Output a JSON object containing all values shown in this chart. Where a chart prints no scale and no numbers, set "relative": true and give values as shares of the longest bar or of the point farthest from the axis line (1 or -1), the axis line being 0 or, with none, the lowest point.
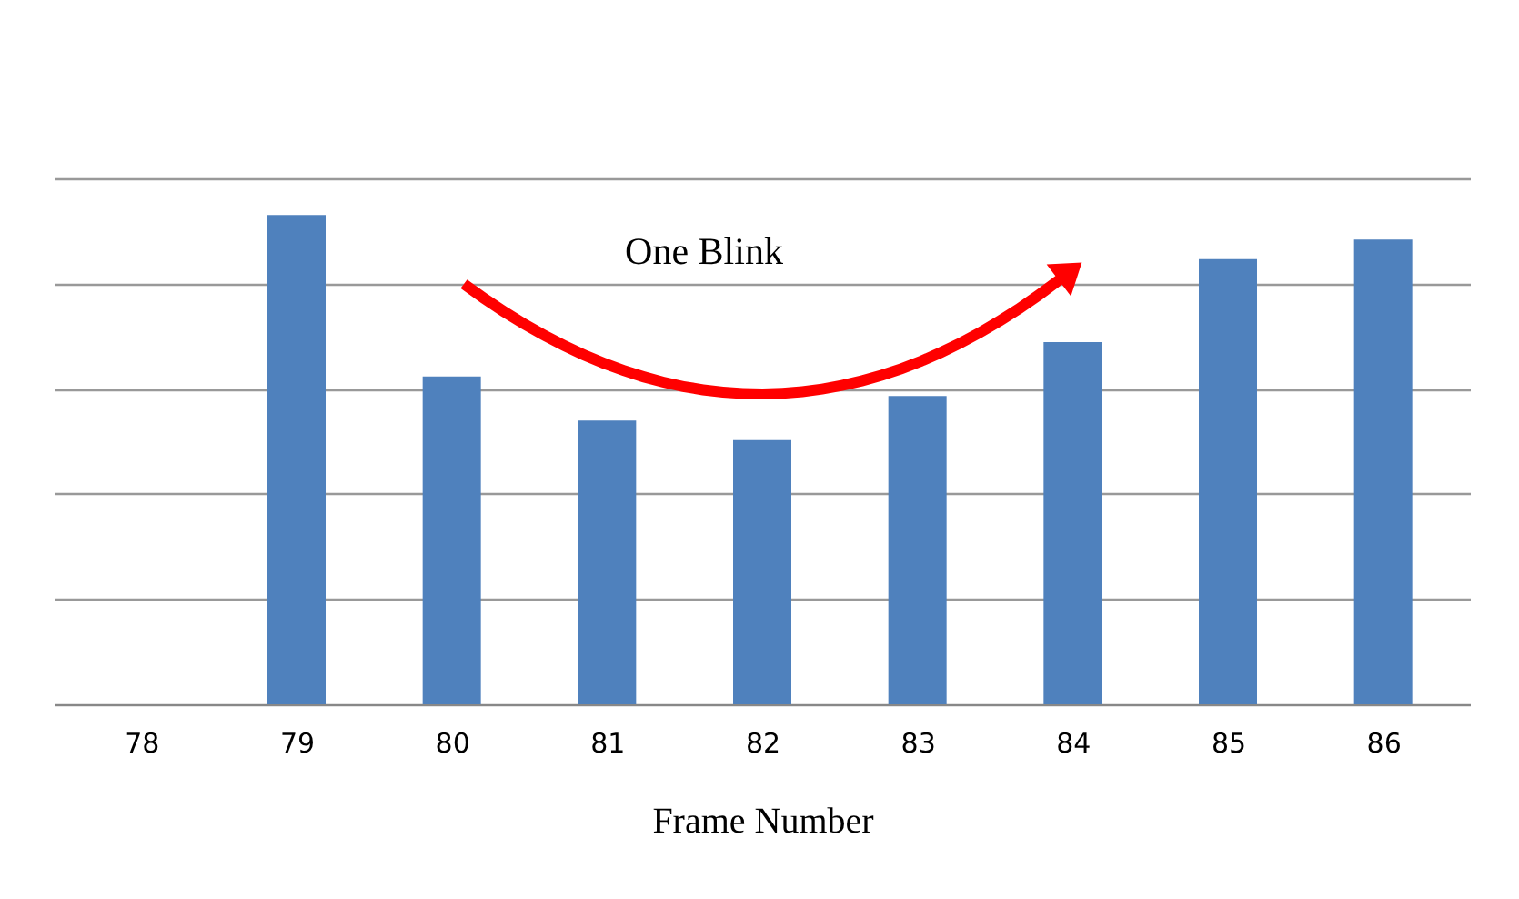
{
  "chart_data": {
    "type": "bar",
    "xlabel": "Frame Number",
    "categories": [
      "78",
      "79",
      "80",
      "81",
      "82",
      "83",
      "84",
      "85",
      "86"
    ],
    "values": [
      null,
      1,
      0.67,
      0.58,
      0.54,
      0.63,
      0.74,
      0.91,
      0.95
    ],
    "color": "#4f81bd",
    "relative": true,
    "grid": "y",
    "annotations": [
      "One Blink"
    ]
  }
}
